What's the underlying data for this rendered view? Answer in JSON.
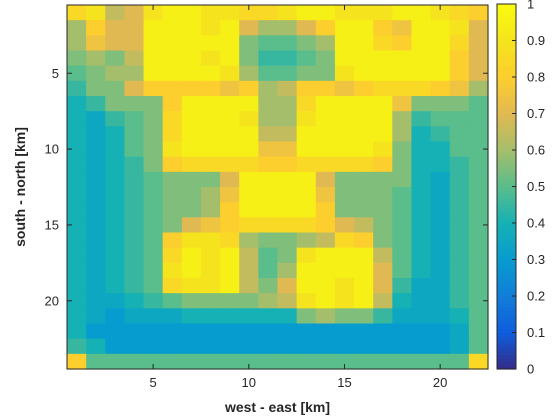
{
  "chart_data": {
    "type": "heatmap",
    "title": "",
    "xlabel": "west - east [km]",
    "ylabel": "south - north [km]",
    "x_range": [
      1,
      22
    ],
    "y_range": [
      1,
      24
    ],
    "x_ticks": [
      5,
      10,
      15,
      20
    ],
    "y_ticks": [
      5,
      10,
      15,
      20
    ],
    "y_direction": "top-down",
    "grid": false,
    "colormap": "parula",
    "colorbar": {
      "placement": "right",
      "range": [
        0,
        1
      ],
      "ticks": [
        "0",
        "0.1",
        "0.2",
        "0.3",
        "0.4",
        "0.5",
        "0.6",
        "0.7",
        "0.8",
        "0.9",
        "1"
      ]
    },
    "values": [
      [
        0.85,
        0.9,
        0.65,
        0.7,
        0.9,
        0.95,
        0.95,
        0.9,
        0.9,
        0.85,
        0.85,
        0.9,
        0.95,
        0.95,
        0.9,
        0.9,
        0.9,
        0.95,
        0.95,
        0.9,
        0.85,
        0.8
      ],
      [
        0.6,
        0.8,
        0.7,
        0.7,
        0.95,
        0.95,
        0.95,
        0.9,
        0.95,
        0.7,
        0.6,
        0.6,
        0.7,
        0.8,
        0.95,
        0.95,
        0.8,
        0.75,
        0.95,
        0.95,
        0.9,
        0.7
      ],
      [
        0.6,
        0.75,
        0.7,
        0.7,
        0.95,
        0.95,
        0.95,
        0.95,
        0.95,
        0.55,
        0.5,
        0.5,
        0.55,
        0.6,
        0.95,
        0.95,
        0.85,
        0.8,
        0.95,
        0.95,
        0.85,
        0.7
      ],
      [
        0.55,
        0.6,
        0.55,
        0.65,
        0.95,
        0.95,
        0.95,
        0.9,
        0.95,
        0.55,
        0.45,
        0.45,
        0.5,
        0.55,
        0.95,
        0.95,
        0.95,
        0.95,
        0.95,
        0.95,
        0.8,
        0.7
      ],
      [
        0.5,
        0.55,
        0.6,
        0.6,
        0.95,
        0.95,
        0.95,
        0.95,
        0.9,
        0.6,
        0.5,
        0.5,
        0.55,
        0.55,
        0.9,
        0.95,
        0.95,
        0.95,
        0.95,
        0.95,
        0.8,
        0.7
      ],
      [
        0.45,
        0.55,
        0.55,
        0.7,
        0.8,
        0.8,
        0.8,
        0.8,
        0.75,
        0.8,
        0.6,
        0.65,
        0.8,
        0.8,
        0.75,
        0.8,
        0.85,
        0.85,
        0.85,
        0.8,
        0.75,
        0.6
      ],
      [
        0.4,
        0.45,
        0.55,
        0.55,
        0.55,
        0.8,
        0.95,
        0.95,
        0.95,
        0.95,
        0.6,
        0.6,
        0.85,
        0.95,
        0.95,
        0.95,
        0.95,
        0.75,
        0.55,
        0.55,
        0.55,
        0.5
      ],
      [
        0.4,
        0.35,
        0.45,
        0.5,
        0.55,
        0.85,
        0.95,
        0.95,
        0.95,
        0.9,
        0.6,
        0.6,
        0.9,
        0.95,
        0.95,
        0.95,
        0.95,
        0.6,
        0.45,
        0.5,
        0.5,
        0.5
      ],
      [
        0.4,
        0.35,
        0.4,
        0.5,
        0.55,
        0.85,
        0.95,
        0.95,
        0.95,
        0.95,
        0.65,
        0.65,
        0.95,
        0.95,
        0.95,
        0.95,
        0.95,
        0.6,
        0.4,
        0.45,
        0.5,
        0.5
      ],
      [
        0.4,
        0.35,
        0.4,
        0.5,
        0.55,
        0.9,
        0.95,
        0.95,
        0.95,
        0.95,
        0.75,
        0.75,
        0.95,
        0.95,
        0.95,
        0.95,
        0.9,
        0.55,
        0.4,
        0.4,
        0.5,
        0.5
      ],
      [
        0.4,
        0.35,
        0.4,
        0.45,
        0.55,
        0.8,
        0.85,
        0.85,
        0.85,
        0.85,
        0.8,
        0.8,
        0.85,
        0.85,
        0.85,
        0.85,
        0.8,
        0.55,
        0.4,
        0.4,
        0.45,
        0.5
      ],
      [
        0.4,
        0.35,
        0.4,
        0.45,
        0.5,
        0.55,
        0.55,
        0.55,
        0.7,
        0.95,
        0.95,
        0.95,
        0.95,
        0.7,
        0.55,
        0.55,
        0.55,
        0.55,
        0.4,
        0.35,
        0.45,
        0.5
      ],
      [
        0.4,
        0.35,
        0.4,
        0.45,
        0.5,
        0.55,
        0.55,
        0.6,
        0.75,
        0.95,
        0.95,
        0.95,
        0.95,
        0.75,
        0.55,
        0.55,
        0.55,
        0.5,
        0.4,
        0.35,
        0.45,
        0.5
      ],
      [
        0.4,
        0.35,
        0.4,
        0.45,
        0.5,
        0.55,
        0.55,
        0.6,
        0.8,
        0.95,
        0.95,
        0.95,
        0.95,
        0.8,
        0.55,
        0.55,
        0.55,
        0.5,
        0.4,
        0.35,
        0.45,
        0.5
      ],
      [
        0.4,
        0.35,
        0.4,
        0.45,
        0.5,
        0.55,
        0.7,
        0.75,
        0.8,
        0.85,
        0.85,
        0.85,
        0.85,
        0.8,
        0.7,
        0.65,
        0.55,
        0.5,
        0.4,
        0.35,
        0.45,
        0.5
      ],
      [
        0.4,
        0.35,
        0.4,
        0.45,
        0.5,
        0.8,
        0.9,
        0.9,
        0.85,
        0.6,
        0.55,
        0.55,
        0.6,
        0.65,
        0.85,
        0.8,
        0.55,
        0.5,
        0.4,
        0.35,
        0.45,
        0.5
      ],
      [
        0.4,
        0.35,
        0.4,
        0.45,
        0.5,
        0.85,
        0.95,
        0.9,
        0.95,
        0.65,
        0.5,
        0.55,
        0.9,
        0.95,
        0.95,
        0.95,
        0.65,
        0.5,
        0.4,
        0.35,
        0.45,
        0.5
      ],
      [
        0.4,
        0.35,
        0.4,
        0.45,
        0.5,
        0.9,
        0.95,
        0.9,
        0.95,
        0.65,
        0.5,
        0.6,
        0.95,
        0.95,
        0.95,
        0.95,
        0.7,
        0.5,
        0.4,
        0.35,
        0.45,
        0.5
      ],
      [
        0.4,
        0.35,
        0.4,
        0.45,
        0.5,
        0.85,
        0.9,
        0.9,
        0.95,
        0.65,
        0.55,
        0.7,
        0.95,
        0.95,
        0.9,
        0.95,
        0.7,
        0.45,
        0.35,
        0.35,
        0.45,
        0.5
      ],
      [
        0.4,
        0.35,
        0.35,
        0.4,
        0.45,
        0.5,
        0.55,
        0.55,
        0.55,
        0.55,
        0.6,
        0.65,
        0.9,
        0.95,
        0.9,
        0.95,
        0.65,
        0.4,
        0.35,
        0.35,
        0.45,
        0.5
      ],
      [
        0.4,
        0.35,
        0.3,
        0.35,
        0.35,
        0.35,
        0.4,
        0.4,
        0.4,
        0.4,
        0.4,
        0.4,
        0.55,
        0.6,
        0.55,
        0.55,
        0.45,
        0.35,
        0.35,
        0.35,
        0.4,
        0.5
      ],
      [
        0.4,
        0.3,
        0.3,
        0.3,
        0.3,
        0.3,
        0.3,
        0.3,
        0.3,
        0.3,
        0.3,
        0.3,
        0.3,
        0.3,
        0.3,
        0.3,
        0.3,
        0.3,
        0.3,
        0.3,
        0.35,
        0.5
      ],
      [
        0.45,
        0.4,
        0.3,
        0.3,
        0.3,
        0.3,
        0.3,
        0.3,
        0.3,
        0.3,
        0.3,
        0.3,
        0.3,
        0.3,
        0.3,
        0.3,
        0.3,
        0.3,
        0.3,
        0.3,
        0.35,
        0.5
      ],
      [
        0.8,
        0.5,
        0.5,
        0.5,
        0.5,
        0.5,
        0.5,
        0.5,
        0.5,
        0.5,
        0.5,
        0.5,
        0.5,
        0.5,
        0.5,
        0.5,
        0.5,
        0.5,
        0.5,
        0.5,
        0.5,
        0.85
      ]
    ]
  }
}
